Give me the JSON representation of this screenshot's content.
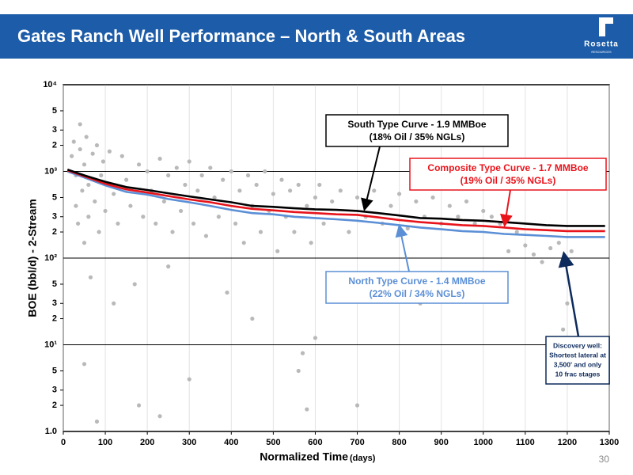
{
  "header": {
    "title": "Gates Ranch Well Performance – North & South Areas",
    "logo": "Rosetta",
    "logo_sub": "RESOURCES"
  },
  "page_number": "30",
  "chart_data": {
    "type": "line",
    "x_label": "Normalized Time",
    "x_label_unit": "(days)",
    "y_label": "BOE (bbl/d) - 2-Stream",
    "log_y": true,
    "grid": true,
    "xlim": [
      0,
      1300
    ],
    "xticks": [
      0,
      100,
      200,
      300,
      400,
      500,
      600,
      700,
      800,
      900,
      1000,
      1100,
      1200,
      1300
    ],
    "ylim": [
      1,
      10000
    ],
    "yticks": [
      {
        "value": 1,
        "label": "1.0"
      },
      2,
      3,
      5,
      {
        "value": 10,
        "label": "10¹"
      },
      {
        "value": 20,
        "label": "2"
      },
      {
        "value": 30,
        "label": "3"
      },
      {
        "value": 50,
        "label": "5"
      },
      {
        "value": 100,
        "label": "10²"
      },
      {
        "value": 200,
        "label": "2"
      },
      {
        "value": 300,
        "label": "3"
      },
      {
        "value": 500,
        "label": "5"
      },
      {
        "value": 1000,
        "label": "10³"
      },
      {
        "value": 2000,
        "label": "2"
      },
      {
        "value": 3000,
        "label": "3"
      },
      {
        "value": 5000,
        "label": "5"
      },
      {
        "value": 10000,
        "label": "10⁴"
      }
    ],
    "points": {
      "color": "#b9b9b9",
      "x": [
        20,
        25,
        30,
        30,
        35,
        40,
        40,
        45,
        50,
        50,
        55,
        60,
        60,
        65,
        70,
        75,
        80,
        85,
        90,
        95,
        100,
        110,
        120,
        130,
        140,
        150,
        160,
        170,
        180,
        190,
        200,
        210,
        220,
        230,
        240,
        250,
        260,
        270,
        280,
        290,
        300,
        310,
        320,
        330,
        340,
        350,
        360,
        370,
        380,
        390,
        400,
        410,
        420,
        430,
        440,
        450,
        460,
        470,
        480,
        490,
        500,
        510,
        520,
        530,
        540,
        550,
        560,
        570,
        580,
        590,
        600,
        600,
        610,
        620,
        640,
        660,
        680,
        700,
        720,
        740,
        760,
        780,
        800,
        820,
        840,
        860,
        880,
        900,
        920,
        940,
        960,
        980,
        1000,
        1020,
        1040,
        1060,
        1080,
        1100,
        1120,
        1140,
        1160,
        1180,
        1200,
        1190,
        1210,
        50,
        80,
        120,
        250,
        300,
        700,
        850,
        900,
        450,
        180,
        230,
        560,
        580
      ],
      "values": [
        1500,
        2200,
        900,
        400,
        250,
        3500,
        1800,
        600,
        1200,
        150,
        2500,
        700,
        300,
        60,
        1600,
        450,
        2000,
        200,
        900,
        1300,
        350,
        1700,
        550,
        250,
        1500,
        800,
        400,
        50,
        1200,
        300,
        1000,
        600,
        250,
        1400,
        450,
        900,
        200,
        1100,
        350,
        700,
        1300,
        250,
        600,
        900,
        180,
        1100,
        500,
        300,
        800,
        40,
        1000,
        250,
        600,
        150,
        900,
        400,
        700,
        200,
        1000,
        350,
        550,
        120,
        800,
        300,
        600,
        200,
        700,
        8,
        400,
        150,
        12,
        500,
        700,
        250,
        450,
        600,
        200,
        500,
        300,
        600,
        250,
        400,
        550,
        220,
        450,
        300,
        500,
        250,
        400,
        300,
        450,
        250,
        350,
        300,
        250,
        120,
        200,
        140,
        110,
        90,
        130,
        150,
        30,
        15,
        120,
        6,
        1.3,
        30,
        80,
        4,
        2,
        30,
        60,
        20,
        2,
        1.5,
        5,
        1.8
      ]
    },
    "x": [
      10,
      50,
      100,
      150,
      200,
      250,
      300,
      350,
      400,
      450,
      500,
      550,
      600,
      650,
      700,
      750,
      800,
      850,
      900,
      950,
      1000,
      1050,
      1100,
      1150,
      1200,
      1250,
      1290
    ],
    "series": [
      {
        "name": "South Type Curve - 1.9 MMBoe",
        "note": "(18% Oil / 35% NGLs)",
        "color": "#000000",
        "values": [
          1050,
          900,
          760,
          660,
          610,
          560,
          515,
          475,
          440,
          400,
          390,
          375,
          365,
          360,
          350,
          330,
          310,
          290,
          285,
          275,
          270,
          260,
          250,
          240,
          235,
          235,
          235
        ]
      },
      {
        "name": "Composite Type Curve - 1.7 MMBoe",
        "note": "(19% Oil / 35% NGLs)",
        "color": "#e8141c",
        "values": [
          1030,
          880,
          720,
          620,
          570,
          520,
          475,
          440,
          400,
          370,
          355,
          340,
          330,
          320,
          315,
          295,
          275,
          260,
          250,
          240,
          235,
          225,
          215,
          210,
          205,
          205,
          205
        ]
      },
      {
        "name": "North Type Curve - 1.4 MMBoe",
        "note": "(22% Oil / 34% NGLs)",
        "color": "#5b8fd6",
        "values": [
          1000,
          850,
          690,
          580,
          540,
          480,
          440,
          400,
          360,
          330,
          320,
          300,
          290,
          280,
          270,
          255,
          240,
          225,
          215,
          205,
          200,
          190,
          185,
          180,
          175,
          175,
          175
        ]
      }
    ],
    "annotations": [
      {
        "lines": [
          "Discovery well:",
          "Shortest lateral at",
          "3,500' and only",
          "10 frac stages"
        ],
        "color": "#0d2a5c"
      }
    ]
  }
}
